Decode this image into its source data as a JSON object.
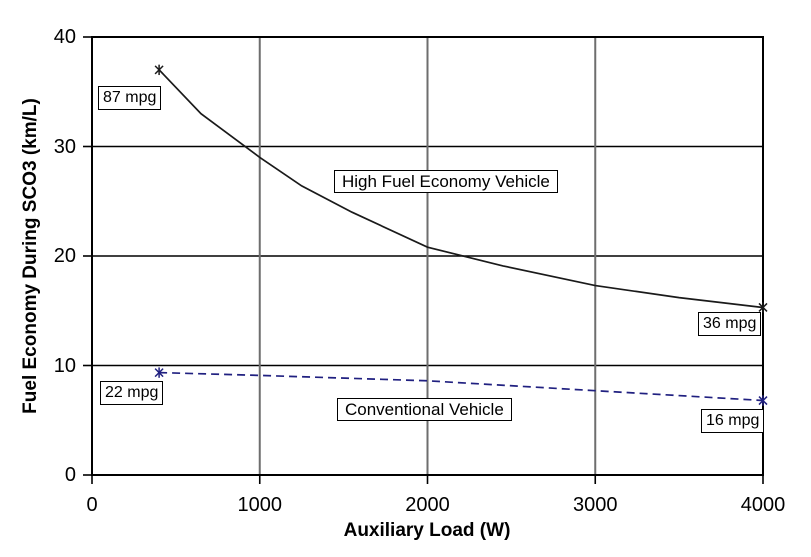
{
  "chart_data": {
    "type": "line",
    "title": "",
    "xlabel": "Auxiliary Load (W)",
    "ylabel": "Fuel Economy During SCO3 (km/L)",
    "xlim": [
      0,
      4000
    ],
    "ylim": [
      0,
      40
    ],
    "x_ticks": [
      "0",
      "1000",
      "2000",
      "3000",
      "4000"
    ],
    "x_tick_values": [
      0,
      1000,
      2000,
      3000,
      4000
    ],
    "y_ticks": [
      "0",
      "10",
      "20",
      "30",
      "40"
    ],
    "y_tick_values": [
      0,
      10,
      20,
      30,
      40
    ],
    "grid": true,
    "legend_position": "in-plot boxed labels",
    "series": [
      {
        "name": "High Fuel Economy Vehicle",
        "color": "#1a1a1a",
        "style": "solid",
        "marker": "asterisk",
        "x": [
          400,
          650,
          1000,
          1250,
          1550,
          2000,
          2450,
          3000,
          3500,
          4000
        ],
        "values": [
          37.0,
          33.0,
          29.0,
          26.4,
          24.0,
          20.8,
          19.1,
          17.3,
          16.2,
          15.3
        ],
        "marker_points": [
          [
            400,
            37.0
          ],
          [
            4000,
            15.3
          ]
        ]
      },
      {
        "name": "Conventional Vehicle",
        "color": "#202080",
        "style": "dashed",
        "marker": "asterisk",
        "x": [
          400,
          1000,
          2000,
          3000,
          4000
        ],
        "values": [
          9.35,
          9.1,
          8.6,
          7.7,
          6.8
        ],
        "marker_points": [
          [
            400,
            9.35
          ],
          [
            4000,
            6.8
          ]
        ]
      }
    ],
    "point_labels": [
      {
        "text": "87 mpg",
        "series": "High Fuel Economy Vehicle",
        "at_x": 400,
        "value_kmL": 37.0
      },
      {
        "text": "36 mpg",
        "series": "High Fuel Economy Vehicle",
        "at_x": 4000,
        "value_kmL": 15.3
      },
      {
        "text": "22 mpg",
        "series": "Conventional Vehicle",
        "at_x": 400,
        "value_kmL": 9.35
      },
      {
        "text": "16 mpg",
        "series": "Conventional Vehicle",
        "at_x": 4000,
        "value_kmL": 6.8
      }
    ],
    "colors": {
      "plot_border": "#000000",
      "h_gridline": "#000000",
      "v_gridline": "#6e6e6e",
      "background": "#ffffff",
      "high_series": "#1a1a1a",
      "conventional_series": "#202080"
    }
  }
}
